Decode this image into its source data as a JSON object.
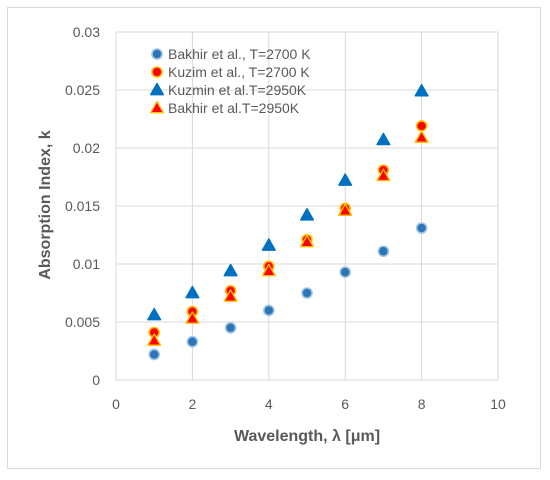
{
  "chart_data": {
    "type": "scatter",
    "xlabel": "Wavelength, λ [μm]",
    "ylabel": "Absorption Index, k",
    "xlim": [
      0,
      10
    ],
    "ylim": [
      0,
      0.03
    ],
    "x_ticks": [
      "0",
      "2",
      "4",
      "6",
      "8",
      "10"
    ],
    "y_ticks": [
      "0",
      "0.005",
      "0.01",
      "0.015",
      "0.02",
      "0.025",
      "0.03"
    ],
    "grid": "horizontal-and-vertical",
    "legend_position": "top-left",
    "series": [
      {
        "name": "Bakhir et al., T=2700 K",
        "marker": "circle",
        "fill": "#2e75b6",
        "stroke": "#9dc3e6",
        "x": [
          1,
          2,
          3,
          4,
          5,
          6,
          7,
          8
        ],
        "y": [
          0.0022,
          0.0033,
          0.0045,
          0.006,
          0.0075,
          0.0093,
          0.0111,
          0.0131
        ]
      },
      {
        "name": "Kuzim et al., T=2700 K",
        "marker": "circle",
        "fill": "#ff0000",
        "stroke": "#ffc000",
        "x": [
          1,
          2,
          3,
          4,
          5,
          6,
          7,
          8
        ],
        "y": [
          0.0041,
          0.0059,
          0.0077,
          0.0098,
          0.0121,
          0.0148,
          0.0181,
          0.0219
        ]
      },
      {
        "name": "Kuzmin et al.T=2950K",
        "marker": "triangle",
        "fill": "#0070c0",
        "stroke": "#0070c0",
        "x": [
          1,
          2,
          3,
          4,
          5,
          6,
          7,
          8
        ],
        "y": [
          0.0056,
          0.0075,
          0.0094,
          0.0116,
          0.0142,
          0.0172,
          0.0207,
          0.0249
        ]
      },
      {
        "name": "Bakhir et al.T=2950K",
        "marker": "triangle",
        "fill": "#ff0000",
        "stroke": "#ffc000",
        "x": [
          1,
          2,
          3,
          4,
          5,
          6,
          7,
          8
        ],
        "y": [
          0.0034,
          0.0053,
          0.0072,
          0.0094,
          0.0119,
          0.0146,
          0.0176,
          0.0209
        ]
      }
    ]
  }
}
